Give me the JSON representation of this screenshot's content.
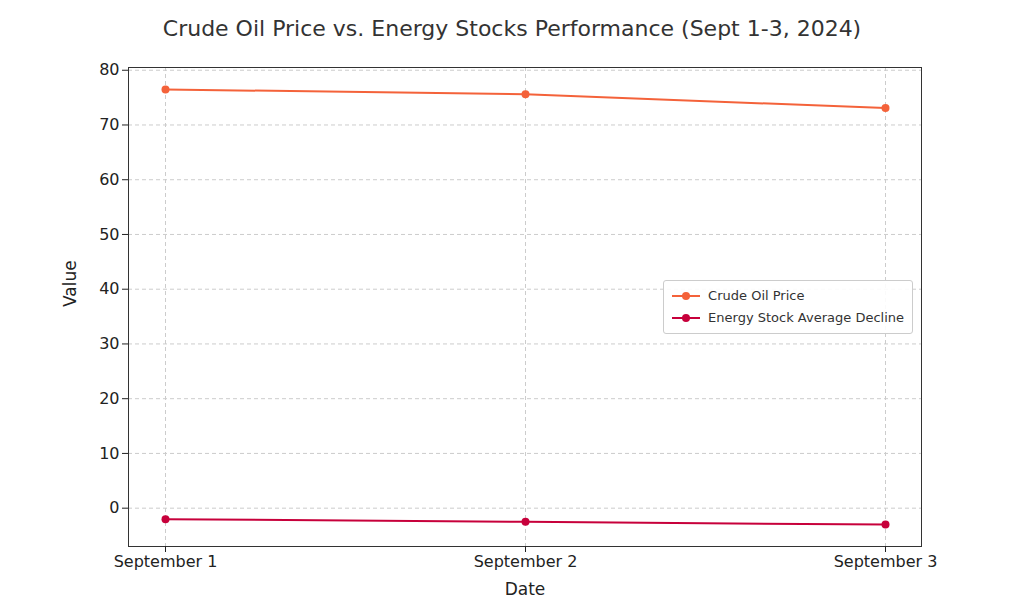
{
  "chart_data": {
    "type": "line",
    "title": "Crude Oil Price vs. Energy Stocks Performance (Sept 1-3, 2024)",
    "x_label": "Date",
    "y_label": "Value",
    "categories": [
      "September 1",
      "September 2",
      "September 3"
    ],
    "series": [
      {
        "name": "Crude Oil Price",
        "color": "#f4623a",
        "marker": "circle",
        "values": [
          76.5,
          75.6,
          73.1
        ]
      },
      {
        "name": "Energy Stock Average Decline",
        "color": "#c7003b",
        "marker": "circle",
        "values": [
          -2.0,
          -2.5,
          -3.0
        ]
      }
    ],
    "ylim": [
      -7,
      80.5
    ],
    "yticks": [
      0,
      10,
      20,
      30,
      40,
      50,
      60,
      70,
      80
    ],
    "grid": true,
    "legend": "right"
  }
}
